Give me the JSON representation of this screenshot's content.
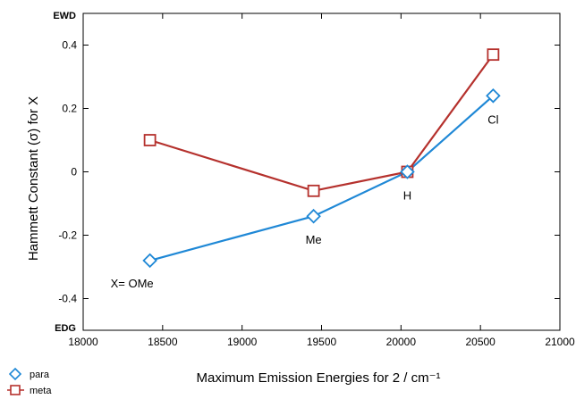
{
  "chart_data": {
    "type": "line",
    "xlabel": "Maximum Emission Energies for 2 / cm⁻¹",
    "ylabel": "Hammett Constant (σ) for X",
    "xlim": [
      18000,
      21000
    ],
    "ylim": [
      -0.5,
      0.5
    ],
    "x_ticks": [
      18000,
      18500,
      19000,
      19500,
      20000,
      20500,
      21000
    ],
    "y_ticks": [
      -0.4,
      -0.2,
      0,
      0.2,
      0.4
    ],
    "x_tick_labels": [
      "18000",
      "18500",
      "19000",
      "19500",
      "20000",
      "20500",
      "21000"
    ],
    "y_tick_labels": [
      "-0.4",
      "-0.2",
      "0",
      "0.2",
      "0.4"
    ],
    "y_top_label": "EWD",
    "y_bottom_label": "EDG",
    "grid": false,
    "legend_position": "bottom-left",
    "series": [
      {
        "name": "para",
        "color": "#1f88d6",
        "marker": "diamond",
        "x": [
          18420,
          19450,
          20040,
          20580
        ],
        "y": [
          -0.28,
          -0.14,
          0.0,
          0.24
        ]
      },
      {
        "name": "meta",
        "color": "#b5312d",
        "marker": "square",
        "x": [
          18420,
          19450,
          20040,
          20580
        ],
        "y": [
          0.1,
          -0.06,
          0.0,
          0.37
        ]
      }
    ],
    "annotations": [
      {
        "text": "X= OMe",
        "x": 18420,
        "y": -0.28
      },
      {
        "text": "Me",
        "x": 19450,
        "y": -0.14
      },
      {
        "text": "H",
        "x": 20040,
        "y": 0.0
      },
      {
        "text": "Cl",
        "x": 20580,
        "y": 0.24
      }
    ]
  }
}
